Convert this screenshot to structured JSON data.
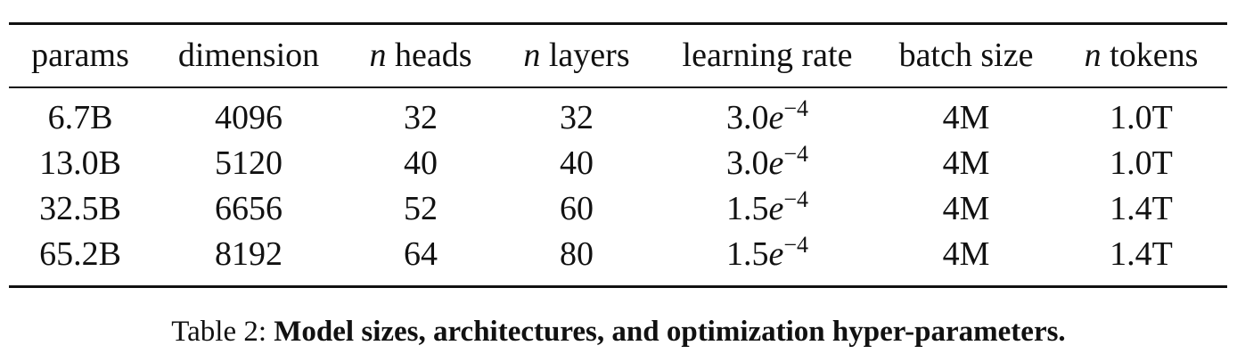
{
  "table": {
    "header": {
      "params": "params",
      "dimension": "dimension",
      "heads": {
        "n": "n",
        "label": " heads"
      },
      "layers": {
        "n": "n",
        "label": " layers"
      },
      "learning_rate": "learning rate",
      "batch_size": "batch size",
      "tokens": {
        "n": "n",
        "label": " tokens"
      }
    },
    "rows": [
      {
        "params": "6.7B",
        "dimension": "4096",
        "heads": "32",
        "layers": "32",
        "lr_mantissa": "3.0",
        "lr_base": "e",
        "lr_exp": "−4",
        "batch_size": "4M",
        "tokens": "1.0T"
      },
      {
        "params": "13.0B",
        "dimension": "5120",
        "heads": "40",
        "layers": "40",
        "lr_mantissa": "3.0",
        "lr_base": "e",
        "lr_exp": "−4",
        "batch_size": "4M",
        "tokens": "1.0T"
      },
      {
        "params": "32.5B",
        "dimension": "6656",
        "heads": "52",
        "layers": "60",
        "lr_mantissa": "1.5",
        "lr_base": "e",
        "lr_exp": "−4",
        "batch_size": "4M",
        "tokens": "1.4T"
      },
      {
        "params": "65.2B",
        "dimension": "8192",
        "heads": "64",
        "layers": "80",
        "lr_mantissa": "1.5",
        "lr_base": "e",
        "lr_exp": "−4",
        "batch_size": "4M",
        "tokens": "1.4T"
      }
    ]
  },
  "caption": {
    "label": "Table 2: ",
    "title": "Model sizes, architectures, and optimization hyper-parameters."
  }
}
